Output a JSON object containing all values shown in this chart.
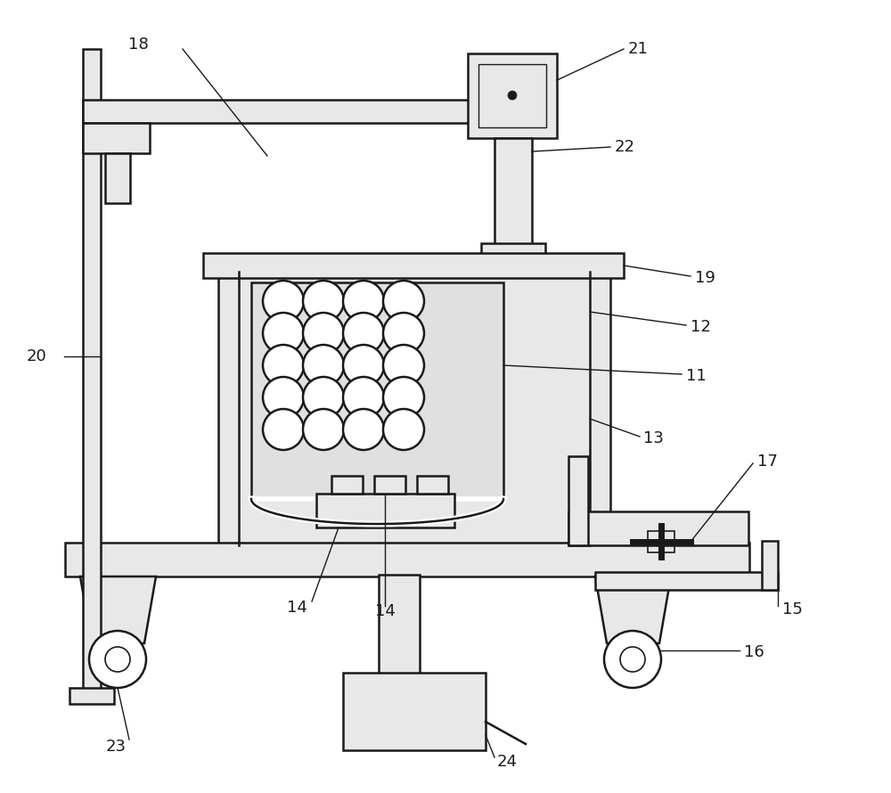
{
  "bg": "#ffffff",
  "lc": "#1a1a1a",
  "lw": 1.8,
  "fs": 12,
  "fill": "#e8e8e8",
  "white": "#ffffff"
}
